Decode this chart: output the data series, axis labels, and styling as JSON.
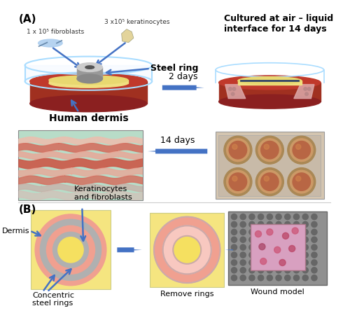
{
  "panel_A_label": "(A)",
  "panel_B_label": "(B)",
  "background_color": "#ffffff",
  "arrow_color": "#4472c4",
  "dermis_side_color": "#a03020",
  "dermis_top_color": "#c0392b",
  "dermis_bot_color": "#8b2020",
  "steel_color": "#bbbbbb",
  "steel_top_color": "#cccccc",
  "glass_color": "#aaddff",
  "yellow_color": "#f0e080",
  "pink_color": "#f0a0a0",
  "gray_ring_color": "#aaaaaa",
  "panel_B_bg": "#f5e580",
  "label_steel_ring": "Steel ring",
  "label_human_dermis": "Human dermis",
  "label_cultured": "Cultured at air – liquid\ninterface for 14 days",
  "label_2days": "2 days",
  "label_14days": "14 days",
  "label_dermis": "Dermis",
  "label_keratinocytes": "Keratinocytes\nand fibroblasts",
  "label_concentric": "Concentric\nsteel rings",
  "label_remove": "Remove rings",
  "label_wound": "Wound model",
  "label_fibroblasts": "1 x 10⁵ fibroblasts",
  "label_keratinocytes2": "3 x10⁵ keratinocytes",
  "text_color": "#000000",
  "title_fontsize": 10,
  "label_fontsize": 8,
  "small_fontsize": 6.5
}
